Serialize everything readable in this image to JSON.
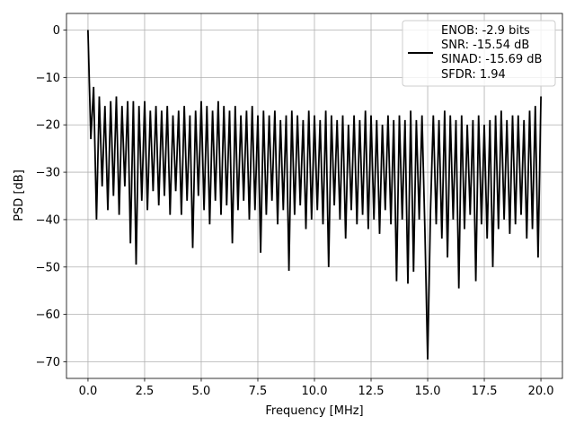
{
  "chart_data": {
    "type": "line",
    "title": "",
    "xlabel": "Frequency [MHz]",
    "ylabel": "PSD [dB]",
    "xlim": [
      -0.95,
      20.95
    ],
    "ylim": [
      -73.5,
      3.5
    ],
    "xticks": [
      0.0,
      2.5,
      5.0,
      7.5,
      10.0,
      12.5,
      15.0,
      17.5,
      20.0
    ],
    "xtick_labels": [
      "0.0",
      "2.5",
      "5.0",
      "7.5",
      "10.0",
      "12.5",
      "15.0",
      "17.5",
      "20.0"
    ],
    "yticks": [
      0,
      -10,
      -20,
      -30,
      -40,
      -50,
      -60,
      -70
    ],
    "ytick_labels": [
      "0",
      "−10",
      "−20",
      "−30",
      "−40",
      "−50",
      "−60",
      "−70"
    ],
    "grid": true,
    "legend_placement": "top-right",
    "legend_lines": [
      "ENOB: -2.9 bits",
      "SNR: -15.54 dB",
      "SINAD: -15.69 dB",
      "SFDR: 1.94"
    ],
    "line_color": "#000000",
    "series": [
      {
        "x": [
          0,
          0.125,
          0.25,
          0.375,
          0.5,
          0.625,
          0.75,
          0.875,
          1,
          1.125,
          1.25,
          1.375,
          1.5,
          1.625,
          1.75,
          1.875,
          2,
          2.125,
          2.25,
          2.375,
          2.5,
          2.625,
          2.75,
          2.875,
          3,
          3.125,
          3.25,
          3.375,
          3.5,
          3.625,
          3.75,
          3.875,
          4,
          4.125,
          4.25,
          4.375,
          4.5,
          4.625,
          4.75,
          4.875,
          5,
          5.125,
          5.25,
          5.375,
          5.5,
          5.625,
          5.75,
          5.875,
          6,
          6.125,
          6.25,
          6.375,
          6.5,
          6.625,
          6.75,
          6.875,
          7,
          7.125,
          7.25,
          7.375,
          7.5,
          7.625,
          7.75,
          7.875,
          8,
          8.125,
          8.25,
          8.375,
          8.5,
          8.625,
          8.75,
          8.875,
          9,
          9.125,
          9.25,
          9.375,
          9.5,
          9.625,
          9.75,
          9.875,
          10,
          10.125,
          10.25,
          10.375,
          10.5,
          10.625,
          10.75,
          10.875,
          11,
          11.125,
          11.25,
          11.375,
          11.5,
          11.625,
          11.75,
          11.875,
          12,
          12.125,
          12.25,
          12.375,
          12.5,
          12.625,
          12.75,
          12.875,
          13,
          13.125,
          13.25,
          13.375,
          13.5,
          13.625,
          13.75,
          13.875,
          14,
          14.125,
          14.25,
          14.375,
          14.5,
          14.625,
          14.75,
          14.875,
          15,
          15.125,
          15.25,
          15.375,
          15.5,
          15.625,
          15.75,
          15.875,
          16,
          16.125,
          16.25,
          16.375,
          16.5,
          16.625,
          16.75,
          16.875,
          17,
          17.125,
          17.25,
          17.375,
          17.5,
          17.625,
          17.75,
          17.875,
          18,
          18.125,
          18.25,
          18.375,
          18.5,
          18.625,
          18.75,
          18.875,
          19,
          19.125,
          19.25,
          19.375,
          19.5,
          19.625,
          19.75,
          19.875,
          20
        ],
        "y": [
          0,
          -23,
          -12,
          -40,
          -14,
          -33,
          -16,
          -38,
          -15,
          -35,
          -14,
          -39,
          -16,
          -33,
          -15,
          -45,
          -15,
          -49.5,
          -16,
          -36,
          -15,
          -38,
          -17,
          -34,
          -16,
          -37,
          -17,
          -35,
          -16,
          -39,
          -18,
          -34,
          -17,
          -39,
          -16,
          -36,
          -18,
          -46,
          -17,
          -35,
          -15,
          -38,
          -16,
          -41,
          -17,
          -36,
          -15,
          -39,
          -16,
          -37,
          -17,
          -45,
          -16,
          -38,
          -18,
          -36,
          -17,
          -40,
          -16,
          -38,
          -18,
          -47,
          -17,
          -39,
          -18,
          -36,
          -17,
          -41,
          -19,
          -38,
          -18,
          -50.8,
          -17,
          -39,
          -18,
          -37,
          -19,
          -42,
          -17,
          -40,
          -18,
          -38,
          -19,
          -41,
          -17,
          -50,
          -18,
          -37,
          -19,
          -40,
          -18,
          -44,
          -20,
          -38,
          -18,
          -41,
          -19,
          -39,
          -17,
          -42,
          -18,
          -40,
          -19,
          -43,
          -20,
          -38,
          -18,
          -41,
          -19,
          -53,
          -18,
          -40,
          -19,
          -53.5,
          -17,
          -51,
          -19,
          -40,
          -18,
          -42,
          -69.5,
          -38,
          -18,
          -41,
          -19,
          -44,
          -17,
          -48,
          -18,
          -40,
          -19,
          -54.5,
          -18,
          -42,
          -20,
          -39,
          -19,
          -53,
          -18,
          -41,
          -20,
          -44,
          -19,
          -50,
          -18,
          -42,
          -17,
          -40,
          -19,
          -43,
          -18,
          -41,
          -18,
          -39,
          -19,
          -44,
          -17,
          -42,
          -16,
          -48,
          -14
        ]
      }
    ]
  }
}
